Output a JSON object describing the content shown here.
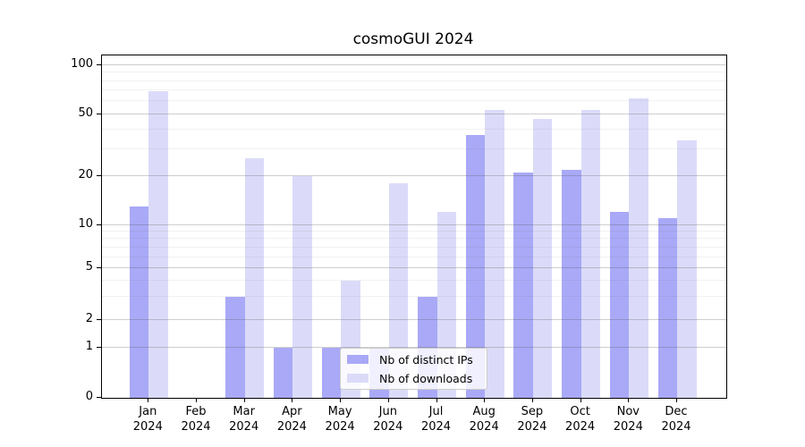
{
  "title": "cosmoGUI 2024",
  "chart_data": {
    "type": "bar",
    "title": "cosmoGUI 2024",
    "categories": [
      "Jan",
      "Feb",
      "Mar",
      "Apr",
      "May",
      "Jun",
      "Jul",
      "Aug",
      "Sep",
      "Oct",
      "Nov",
      "Dec"
    ],
    "category_year": "2024",
    "series": [
      {
        "name": "Nb of distinct IPs",
        "color": "#a9a9f7",
        "values": [
          13,
          0,
          3,
          1,
          1,
          1,
          3,
          37,
          21,
          22,
          12,
          11
        ]
      },
      {
        "name": "Nb of downloads",
        "color": "#dbdbf9",
        "values": [
          69,
          0,
          26,
          20,
          4,
          18,
          12,
          53,
          47,
          53,
          63,
          34
        ]
      }
    ],
    "xlabel": "",
    "ylabel": "",
    "yscale": "symlog",
    "yticks": [
      0,
      1,
      2,
      5,
      10,
      20,
      50,
      100
    ],
    "minor_yticks": [
      3,
      4,
      6,
      7,
      8,
      9,
      30,
      40,
      60,
      70,
      80,
      90
    ],
    "ylim": [
      0,
      107
    ],
    "grid": true,
    "legend_position": "lower-center-inside"
  }
}
